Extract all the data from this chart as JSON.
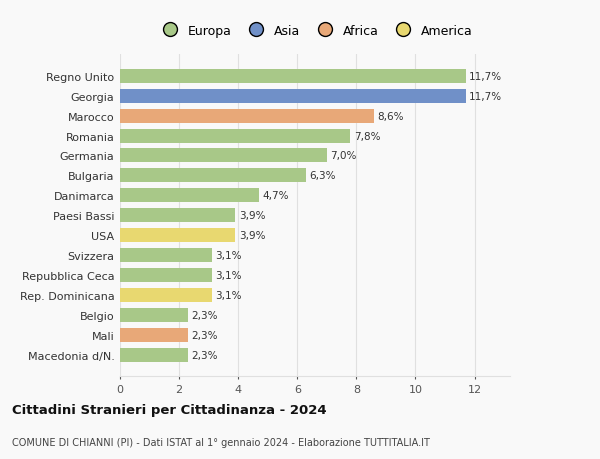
{
  "categories": [
    "Macedonia d/N.",
    "Mali",
    "Belgio",
    "Rep. Dominicana",
    "Repubblica Ceca",
    "Svizzera",
    "USA",
    "Paesi Bassi",
    "Danimarca",
    "Bulgaria",
    "Germania",
    "Romania",
    "Marocco",
    "Georgia",
    "Regno Unito"
  ],
  "values": [
    2.3,
    2.3,
    2.3,
    3.1,
    3.1,
    3.1,
    3.9,
    3.9,
    4.7,
    6.3,
    7.0,
    7.8,
    8.6,
    11.7,
    11.7
  ],
  "labels": [
    "2,3%",
    "2,3%",
    "2,3%",
    "3,1%",
    "3,1%",
    "3,1%",
    "3,9%",
    "3,9%",
    "4,7%",
    "6,3%",
    "7,0%",
    "7,8%",
    "8,6%",
    "11,7%",
    "11,7%"
  ],
  "colors": [
    "#a8c888",
    "#e8a878",
    "#a8c888",
    "#e8d870",
    "#a8c888",
    "#a8c888",
    "#e8d870",
    "#a8c888",
    "#a8c888",
    "#a8c888",
    "#a8c888",
    "#a8c888",
    "#e8a878",
    "#7090c8",
    "#a8c888"
  ],
  "legend_labels": [
    "Europa",
    "Asia",
    "Africa",
    "America"
  ],
  "legend_colors": [
    "#a8c888",
    "#7090c8",
    "#e8a878",
    "#e8d870"
  ],
  "title": "Cittadini Stranieri per Cittadinanza - 2024",
  "subtitle": "COMUNE DI CHIANNI (PI) - Dati ISTAT al 1° gennaio 2024 - Elaborazione TUTTITALIA.IT",
  "xlim": [
    0,
    13.2
  ],
  "xticks": [
    0,
    2,
    4,
    6,
    8,
    10,
    12
  ],
  "bg_color": "#f9f9f9",
  "grid_color": "#e0e0e0"
}
